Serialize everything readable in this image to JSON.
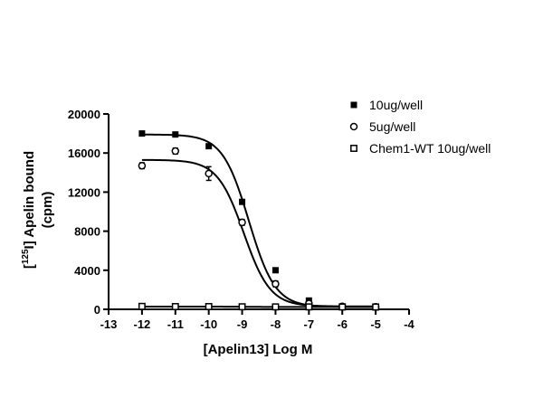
{
  "chart_data": {
    "type": "scatter",
    "title": "",
    "xlabel": "[Apelin13] Log M",
    "ylabel_prefix": "[",
    "ylabel_sup": "125",
    "ylabel_main": "I] Apelin bound",
    "ylabel_unit": "(cpm)",
    "xlim": [
      -13,
      -4
    ],
    "ylim": [
      0,
      20000
    ],
    "x_ticks": [
      -13,
      -12,
      -11,
      -10,
      -9,
      -8,
      -7,
      -6,
      -5,
      -4
    ],
    "y_ticks": [
      0,
      4000,
      8000,
      12000,
      16000,
      20000
    ],
    "grid": false,
    "legend_position": "top-right",
    "series": [
      {
        "name": "10ug/well",
        "marker": "filled-square",
        "x": [
          -12,
          -11,
          -10,
          -9,
          -8,
          -7,
          -6,
          -5
        ],
        "y": [
          18000,
          17900,
          16700,
          11000,
          4000,
          900,
          300,
          200
        ],
        "fit": {
          "top": 17900,
          "bottom": 250,
          "logec50": -8.8,
          "hill": 1.1
        }
      },
      {
        "name": "5ug/well",
        "marker": "open-circle",
        "x": [
          -12,
          -11,
          -10,
          -9,
          -8,
          -7,
          -6,
          -5
        ],
        "y": [
          14700,
          16200,
          13900,
          8900,
          2600,
          600,
          300,
          250
        ],
        "err": [
          300,
          300,
          700,
          300,
          300,
          100,
          80,
          80
        ],
        "fit": {
          "top": 15300,
          "bottom": 300,
          "logec50": -8.95,
          "hill": 1.1
        }
      },
      {
        "name": "Chem1-WT 10ug/well",
        "marker": "open-square",
        "x": [
          -12,
          -11,
          -10,
          -9,
          -8,
          -7,
          -6,
          -5
        ],
        "y": [
          300,
          280,
          280,
          260,
          250,
          250,
          240,
          240
        ],
        "fit": {
          "top": 280,
          "bottom": 240,
          "logec50": -9,
          "hill": 1
        }
      }
    ]
  }
}
